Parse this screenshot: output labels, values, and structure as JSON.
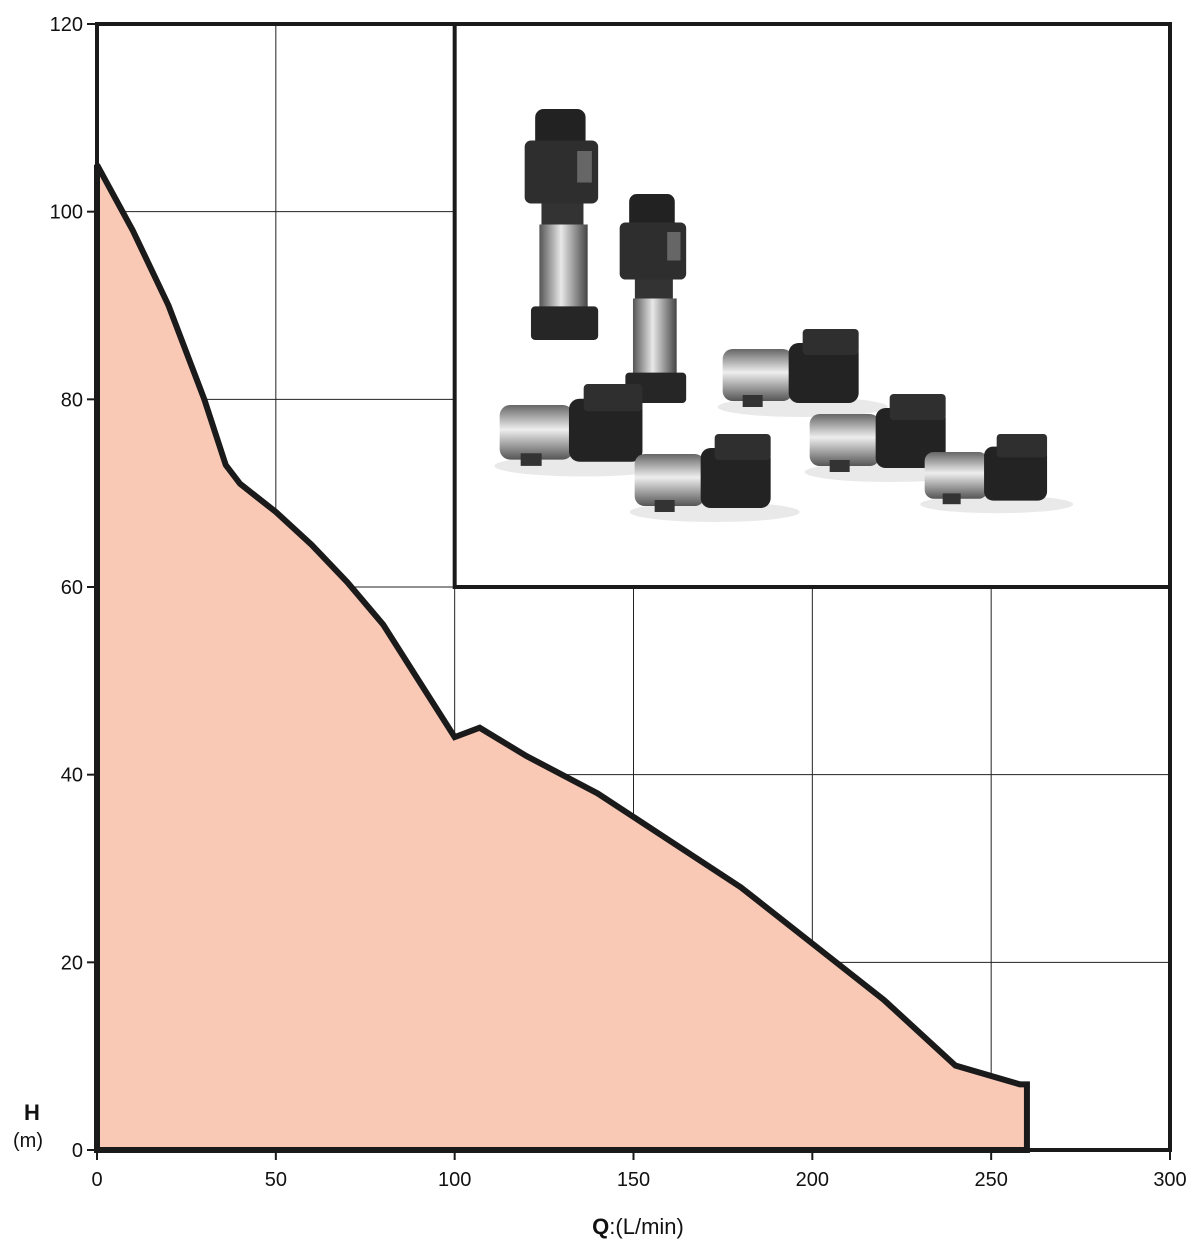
{
  "chart_data": {
    "type": "area",
    "title": "",
    "xlabel_symbol": "Q",
    "xlabel_unit": ":(L/min)",
    "ylabel_symbol": "H",
    "ylabel_unit": "(m)",
    "xlim": [
      0,
      300
    ],
    "ylim": [
      0,
      120
    ],
    "x_ticks": [
      0,
      50,
      100,
      150,
      200,
      250,
      300
    ],
    "y_ticks": [
      0,
      20,
      40,
      60,
      80,
      100,
      120
    ],
    "grid": true,
    "fill_color": "#f9c9b6",
    "line_color": "#1a1a1a",
    "boundary": {
      "x": [
        0,
        10,
        20,
        30,
        36,
        40,
        50,
        60,
        70,
        80,
        90,
        100,
        107,
        120,
        140,
        160,
        180,
        200,
        220,
        240,
        258,
        260,
        260
      ],
      "y": [
        105,
        98,
        90,
        80,
        73,
        71,
        68,
        64.5,
        60.5,
        56,
        50,
        44,
        45,
        42,
        38,
        33,
        28,
        22,
        16,
        9,
        7,
        7,
        0
      ]
    },
    "inset": {
      "description_icon": "pump-product-photo",
      "x_range": [
        100,
        300
      ],
      "y_range": [
        60,
        120
      ]
    }
  }
}
